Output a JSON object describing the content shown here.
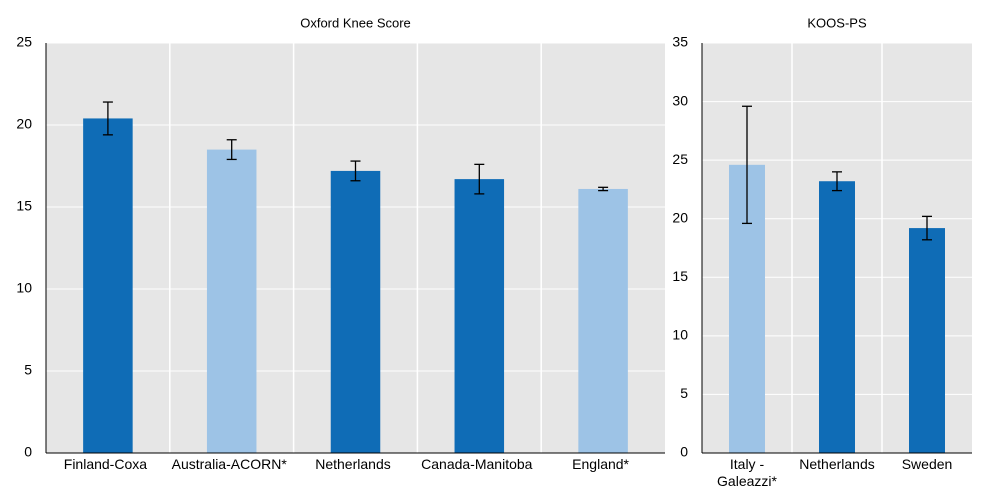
{
  "chart_data": [
    {
      "type": "bar",
      "title": "Oxford Knee Score",
      "categories": [
        "Finland-Coxa",
        "Australia-ACORN*",
        "Netherlands",
        "Canada-Manitoba",
        "England*"
      ],
      "values": [
        20.4,
        18.5,
        17.2,
        16.7,
        16.1
      ],
      "errors": [
        1.0,
        0.6,
        0.6,
        0.9,
        0.1
      ],
      "colors": [
        "#0f6cb6",
        "#9dc3e6",
        "#0f6cb6",
        "#0f6cb6",
        "#9dc3e6"
      ],
      "ylim": [
        0,
        25
      ],
      "yticks": [
        0,
        5,
        10,
        15,
        20,
        25
      ],
      "grid": true
    },
    {
      "type": "bar",
      "title": "KOOS-PS",
      "categories": [
        "Italy - Galeazzi*",
        "Netherlands",
        "Sweden"
      ],
      "values": [
        24.6,
        23.2,
        19.2
      ],
      "errors": [
        5.0,
        0.8,
        1.0
      ],
      "colors": [
        "#9dc3e6",
        "#0f6cb6",
        "#0f6cb6"
      ],
      "ylim": [
        0,
        35
      ],
      "yticks": [
        0,
        5,
        10,
        15,
        20,
        25,
        30,
        35
      ],
      "grid": true
    }
  ]
}
